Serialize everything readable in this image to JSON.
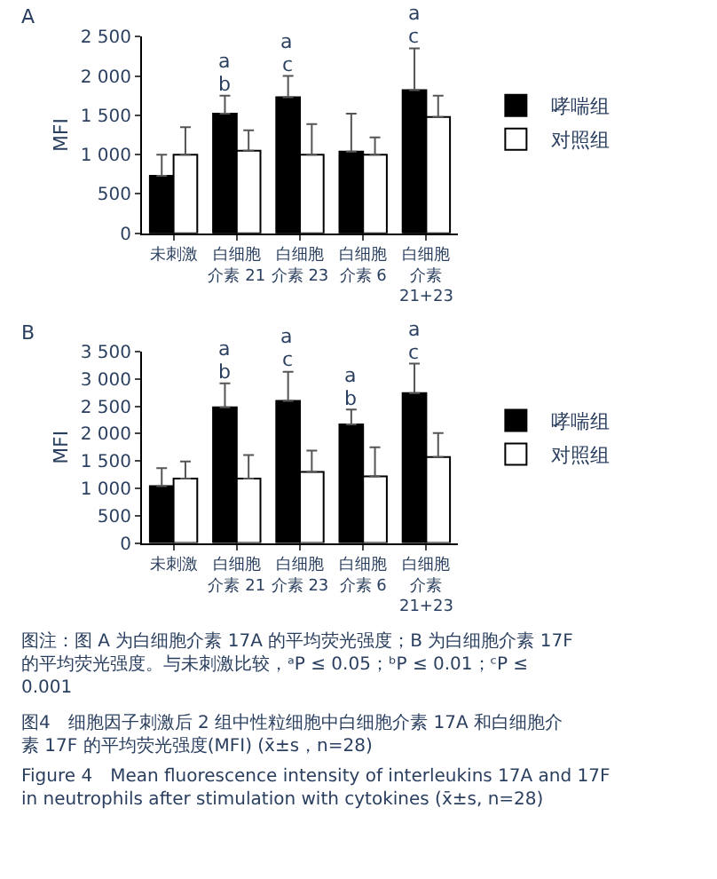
{
  "chart_data": [
    {
      "type": "bar",
      "title": "A",
      "ylabel": "MFI",
      "categories": [
        "未刺激",
        "白细胞介素 21",
        "白细胞介素 23",
        "白细胞介素 6",
        "白细胞介素 21+23"
      ],
      "series": [
        {
          "name": "哮喘组",
          "color": "#000000",
          "values": [
            730,
            1520,
            1730,
            1040,
            1820
          ],
          "errors": [
            [
              730,
              1000
            ],
            [
              1520,
              1750
            ],
            [
              1730,
              2000
            ],
            [
              1040,
              1520
            ],
            [
              1820,
              2350
            ]
          ]
        },
        {
          "name": "对照组",
          "color": "#ffffff",
          "values": [
            1000,
            1050,
            1000,
            1000,
            1480
          ],
          "errors": [
            [
              1000,
              1350
            ],
            [
              1050,
              1310
            ],
            [
              1000,
              1390
            ],
            [
              1000,
              1220
            ],
            [
              1480,
              1750
            ]
          ]
        }
      ],
      "ylim": [
        0,
        2500
      ],
      "yticks": [
        0,
        {
          "value": 500,
          "label": "500"
        },
        {
          "value": 1000,
          "label": "1 000"
        },
        {
          "value": 1500,
          "label": "1 500"
        },
        {
          "value": 2000,
          "label": "2 000"
        },
        {
          "value": 2500,
          "label": "2 500"
        }
      ],
      "legend": "right",
      "annotations": [
        "b",
        "a",
        "c",
        "a",
        "c",
        "a"
      ]
    },
    {
      "type": "bar",
      "title": "B",
      "ylabel": "MFI",
      "categories": [
        "未刺激",
        "白细胞介素 21",
        "白细胞介素 23",
        "白细胞介素 6",
        "白细胞介素 21+23"
      ],
      "series": [
        {
          "name": "哮喘组",
          "color": "#000000",
          "values": [
            1040,
            2480,
            2600,
            2170,
            2740
          ],
          "errors": [
            [
              1040,
              1370
            ],
            [
              2480,
              2920
            ],
            [
              2600,
              3130
            ],
            [
              2170,
              2440
            ],
            [
              2740,
              3280
            ]
          ]
        },
        {
          "name": "对照组",
          "color": "#ffffff",
          "values": [
            1180,
            1180,
            1300,
            1220,
            1570
          ],
          "errors": [
            [
              1180,
              1490
            ],
            [
              1180,
              1610
            ],
            [
              1300,
              1690
            ],
            [
              1220,
              1750
            ],
            [
              1570,
              2010
            ]
          ]
        }
      ],
      "ylim": [
        0,
        3500
      ],
      "yticks": [
        0,
        {
          "value": 500,
          "label": "500"
        },
        {
          "value": 1000,
          "label": "1 000"
        },
        {
          "value": 1500,
          "label": "1 500"
        },
        {
          "value": 2000,
          "label": "2 000"
        },
        {
          "value": 2500,
          "label": "2 500"
        },
        {
          "value": 3000,
          "label": "3 000"
        },
        {
          "value": 3500,
          "label": "3 500"
        }
      ],
      "legend": "right",
      "annotations": [
        "b",
        "a",
        "c",
        "a",
        "b",
        "a",
        "c",
        "a",
        "图注：图 A 为白细胞介素 17A 的平均荧光强度；B 为白细胞介素 17F 的平均荧光强度。与未刺激比较，ᵃP ≤ 0.05；ᵇP ≤ 0.01；ᶜP ≤ 0.001",
        "图4　细胞因子刺激后 2 组中性粒细胞中白细胞介素 17A 和白细胞介素 17F 的平均荧光强度(MFI) (x̄±s，n=28)",
        "Figure 4　Mean fluorescence intensity of interleukins 17A and 17F\nin neutrophils after stimulation with cytokines (x̄±s, n=28)"
      ]
    }
  ]
}
